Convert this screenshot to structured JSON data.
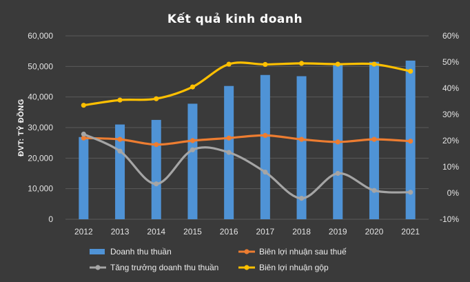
{
  "chart_data": {
    "type": "bar",
    "title": "Kết quả kinh doanh",
    "ylabel": "ĐVT: TỶ ĐỒNG",
    "categories": [
      "2012",
      "2013",
      "2014",
      "2015",
      "2016",
      "2017",
      "2018",
      "2019",
      "2020",
      "2021"
    ],
    "ylim": [
      0,
      60000
    ],
    "y_ticks": [
      "0",
      "10,000",
      "20,000",
      "30,000",
      "40,000",
      "50,000",
      "60,000"
    ],
    "y2lim": [
      -10,
      60
    ],
    "y2_ticks": [
      "-10%",
      "0%",
      "10%",
      "20%",
      "30%",
      "40%",
      "50%",
      "60%"
    ],
    "grid": true,
    "legend_position": "bottom",
    "series": [
      {
        "name": "Doanh thu thuần",
        "kind": "bar",
        "axis": "left",
        "color": "#4f93d6",
        "values": [
          26900,
          31000,
          32500,
          37800,
          43600,
          47200,
          46800,
          50700,
          51500,
          51900
        ]
      },
      {
        "name": "Biên lợi nhuận sau thuế",
        "kind": "line",
        "axis": "right",
        "unit": "%",
        "color": "#ed7d31",
        "values": [
          21,
          20.5,
          18.5,
          20,
          21,
          22,
          20.5,
          19.5,
          20.5,
          19.8
        ]
      },
      {
        "name": "Tăng trưởng doanh thu thuần",
        "kind": "line",
        "axis": "right",
        "unit": "%",
        "color": "#a5a5a5",
        "values": [
          22.5,
          16,
          3.5,
          16.5,
          15.5,
          8,
          -2,
          7.5,
          1,
          0.3
        ]
      },
      {
        "name": "Biên lợi nhuận gộp",
        "kind": "line",
        "axis": "right",
        "unit": "%",
        "color": "#ffc000",
        "values": [
          33.5,
          35.5,
          36,
          40.5,
          49.2,
          49.1,
          49.5,
          49.2,
          49.2,
          46.5
        ]
      }
    ]
  }
}
